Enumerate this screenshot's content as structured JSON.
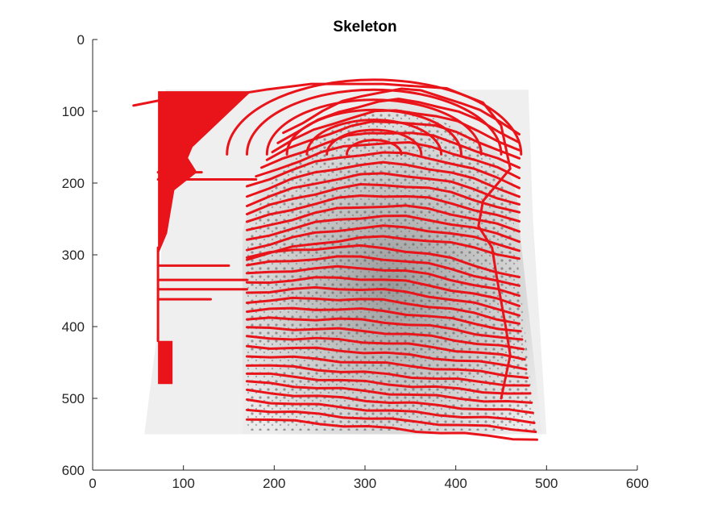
{
  "chart_data": {
    "type": "image",
    "title": "Skeleton",
    "xlabel": "",
    "ylabel": "",
    "xlim": [
      0,
      600
    ],
    "ylim": [
      600,
      0
    ],
    "y_reversed": true,
    "x_ticks": [
      "0",
      "100",
      "200",
      "300",
      "400",
      "500",
      "600"
    ],
    "y_ticks": [
      "0",
      "100",
      "200",
      "300",
      "400",
      "500",
      "600"
    ],
    "grid": false,
    "legend": "none",
    "image_extent": {
      "x": [
        57,
        500
      ],
      "y": [
        70,
        550
      ]
    },
    "skeleton_color": "#e8141a",
    "background_color": "#ffffff"
  }
}
